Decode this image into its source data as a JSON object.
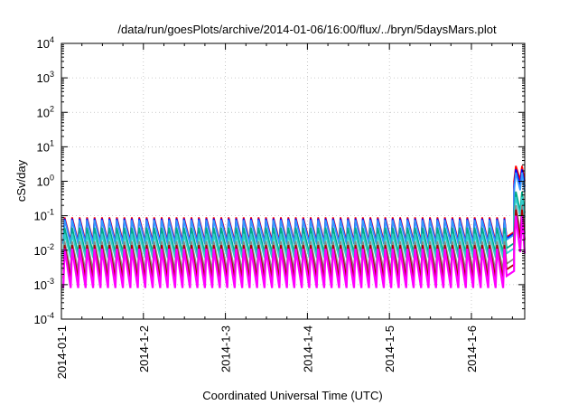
{
  "chart_data": {
    "type": "line",
    "title": "/data/run/goesPlots/archive/2014-01-06/16:00/flux/../bryn/5daysMars.plot",
    "xlabel": "Coordinated Universal Time (UTC)",
    "ylabel": "cSv/day",
    "y_scale": "log",
    "ylim": [
      0.0001,
      10000
    ],
    "xlim_days": [
      0,
      5.65
    ],
    "y_ticks": [
      {
        "base": "10",
        "exp": "-4"
      },
      {
        "base": "10",
        "exp": "-3"
      },
      {
        "base": "10",
        "exp": "-2"
      },
      {
        "base": "10",
        "exp": "-1"
      },
      {
        "base": "10",
        "exp": "0"
      },
      {
        "base": "10",
        "exp": "1"
      },
      {
        "base": "10",
        "exp": "2"
      },
      {
        "base": "10",
        "exp": "3"
      },
      {
        "base": "10",
        "exp": "4"
      }
    ],
    "x_ticks": [
      "2014-01-1",
      "2014-1-2",
      "2014-1-3",
      "2014-1-4",
      "2014-1-5",
      "2014-1-6"
    ],
    "grid": true,
    "legend": "none",
    "pattern": {
      "cycles_per_day": 11,
      "rise_fraction": 0.18,
      "quiet_interval_days": [
        5.42,
        5.52
      ],
      "storm_onset_day": 5.52
    },
    "series": [
      {
        "color": "#ff0000",
        "peak": 0.09,
        "trough": 0.018,
        "storm_peak": 2.8,
        "storm_trough": 1.0
      },
      {
        "color": "#0000ff",
        "peak": 0.082,
        "trough": 0.016,
        "storm_peak": 2.2,
        "storm_trough": 0.7
      },
      {
        "color": "#3399ff",
        "peak": 0.075,
        "trough": 0.015,
        "storm_peak": 1.8,
        "storm_trough": 0.5
      },
      {
        "color": "#00aa88",
        "peak": 0.045,
        "trough": 0.008,
        "storm_peak": 0.5,
        "storm_trough": 0.12
      },
      {
        "color": "#33cccc",
        "peak": 0.03,
        "trough": 0.006,
        "storm_peak": 0.35,
        "storm_trough": 0.09
      },
      {
        "color": "#888888",
        "peak": 0.018,
        "trough": 0.0025,
        "storm_peak": 0.2,
        "storm_trough": 0.03
      },
      {
        "color": "#aa0000",
        "peak": 0.014,
        "trough": 0.0015,
        "storm_peak": 0.15,
        "storm_trough": 0.02
      },
      {
        "color": "#ff00ff",
        "peak": 0.011,
        "trough": 0.0008,
        "storm_peak": 0.1,
        "storm_trough": 0.008
      }
    ]
  }
}
